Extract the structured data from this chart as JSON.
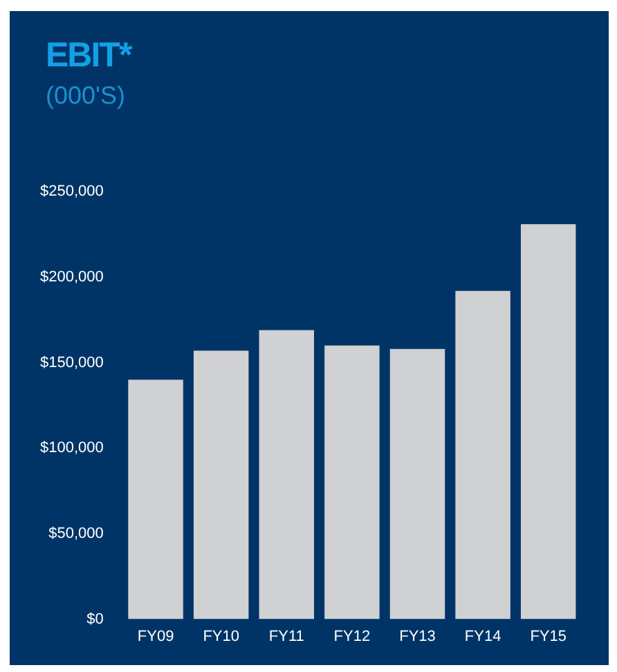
{
  "chart_data": {
    "type": "bar",
    "title": "EBIT*",
    "subtitle": "(000'S)",
    "categories": [
      "FY09",
      "FY10",
      "FY11",
      "FY12",
      "FY13",
      "FY14",
      "FY15"
    ],
    "values": [
      140000,
      157000,
      169000,
      160000,
      158000,
      192000,
      231000
    ],
    "color": "#d0d1d3",
    "ylim": [
      0,
      250000
    ],
    "yticks": [
      {
        "value": 0,
        "label": "$0"
      },
      {
        "value": 50000,
        "label": "$50,000"
      },
      {
        "value": 100000,
        "label": "$100,000"
      },
      {
        "value": 150000,
        "label": "$150,000"
      },
      {
        "value": 200000,
        "label": "$200,000"
      },
      {
        "value": 250000,
        "label": "$250,000"
      }
    ],
    "grid": false,
    "legend": false
  }
}
